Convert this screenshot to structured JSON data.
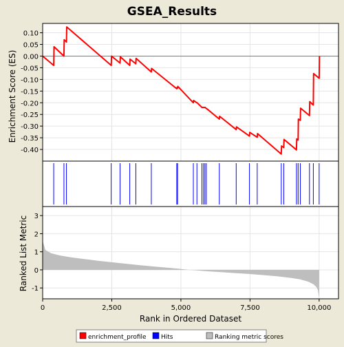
{
  "chart_data": {
    "type": "line",
    "title": "GSEA_Results",
    "xlabel": "Rank in Ordered Dataset",
    "xlim": [
      0,
      10700
    ],
    "x_ticks": [
      0,
      2500,
      5000,
      7500,
      10000
    ],
    "x_tick_labels": [
      "0",
      "2,500",
      "5,000",
      "7,500",
      "10,000"
    ],
    "panels": [
      {
        "id": "enrichment",
        "ylabel": "Enrichment Score (ES)",
        "ylim": [
          -0.45,
          0.14
        ],
        "y_ticks": [
          0.1,
          0.05,
          0.0,
          -0.05,
          -0.1,
          -0.15,
          -0.2,
          -0.25,
          -0.3,
          -0.35,
          -0.4
        ],
        "y_tick_labels": [
          "0.10",
          "0.05",
          "0.00",
          "-0.05",
          "-0.10",
          "-0.15",
          "-0.20",
          "-0.25",
          "-0.30",
          "-0.35",
          "-0.40"
        ],
        "grid": true
      },
      {
        "id": "hits",
        "ylabel": ""
      },
      {
        "id": "ranking",
        "ylabel": "Ranked List Metric",
        "ylim": [
          -1.6,
          3.5
        ],
        "y_ticks": [
          3,
          2,
          1,
          0,
          -1
        ],
        "y_tick_labels": [
          "3",
          "2",
          "1",
          "0",
          "-1"
        ],
        "grid": true
      }
    ],
    "series": [
      {
        "name": "enrichment_profile",
        "color": "#ff0000",
        "x": [
          0,
          400,
          410,
          770,
          780,
          860,
          870,
          2480,
          2490,
          2800,
          2810,
          3150,
          3160,
          3370,
          3380,
          3930,
          3940,
          4850,
          4860,
          4880,
          4890,
          5450,
          5460,
          5580,
          5590,
          5760,
          5770,
          5820,
          5830,
          5870,
          5880,
          5920,
          5930,
          6390,
          6400,
          7000,
          7010,
          7480,
          7490,
          7760,
          7770,
          8630,
          8640,
          8720,
          8730,
          9180,
          9190,
          9240,
          9250,
          9320,
          9330,
          9650,
          9660,
          9790,
          9800,
          10000,
          10010
        ],
        "y": [
          0.0,
          -0.04,
          0.04,
          0.0,
          0.07,
          0.06,
          0.125,
          -0.04,
          0.0,
          -0.03,
          -0.003,
          -0.04,
          -0.013,
          -0.033,
          -0.01,
          -0.068,
          -0.053,
          -0.14,
          -0.135,
          -0.137,
          -0.13,
          -0.2,
          -0.19,
          -0.2,
          -0.2,
          -0.22,
          -0.22,
          -0.22,
          -0.22,
          -0.22,
          -0.22,
          -0.225,
          -0.225,
          -0.27,
          -0.258,
          -0.315,
          -0.303,
          -0.343,
          -0.327,
          -0.348,
          -0.332,
          -0.42,
          -0.385,
          -0.392,
          -0.357,
          -0.402,
          -0.355,
          -0.36,
          -0.27,
          -0.275,
          -0.223,
          -0.255,
          -0.195,
          -0.21,
          -0.075,
          -0.095,
          0.0
        ]
      },
      {
        "name": "Hits",
        "color": "#0000ff",
        "x": [
          400,
          770,
          860,
          2480,
          2800,
          3150,
          3370,
          3930,
          4850,
          4880,
          5450,
          5580,
          5760,
          5820,
          5870,
          5920,
          6390,
          7000,
          7480,
          7760,
          8630,
          8720,
          9180,
          9240,
          9320,
          9650,
          9790,
          10000
        ]
      },
      {
        "name": "Ranking metric scores",
        "color": "#bebebe",
        "x": [
          0,
          100,
          300,
          600,
          1000,
          1500,
          2000,
          2500,
          3000,
          3500,
          4000,
          4500,
          5000,
          5300,
          5500,
          6000,
          6500,
          7000,
          7500,
          8000,
          8500,
          9000,
          9300,
          9600,
          9800,
          9900,
          9950,
          10000
        ],
        "y": [
          1.6,
          1.1,
          0.92,
          0.8,
          0.7,
          0.6,
          0.5,
          0.42,
          0.34,
          0.26,
          0.19,
          0.12,
          0.05,
          0.0,
          -0.02,
          -0.08,
          -0.13,
          -0.18,
          -0.23,
          -0.29,
          -0.36,
          -0.45,
          -0.52,
          -0.65,
          -0.8,
          -0.95,
          -1.1,
          -1.55
        ]
      }
    ],
    "legend": {
      "position": "bottom",
      "entries": [
        {
          "label": "enrichment_profile",
          "color": "#ff0000"
        },
        {
          "label": "Hits",
          "color": "#0000ff"
        },
        {
          "label": "Ranking metric scores",
          "color": "#bebebe"
        }
      ]
    }
  }
}
